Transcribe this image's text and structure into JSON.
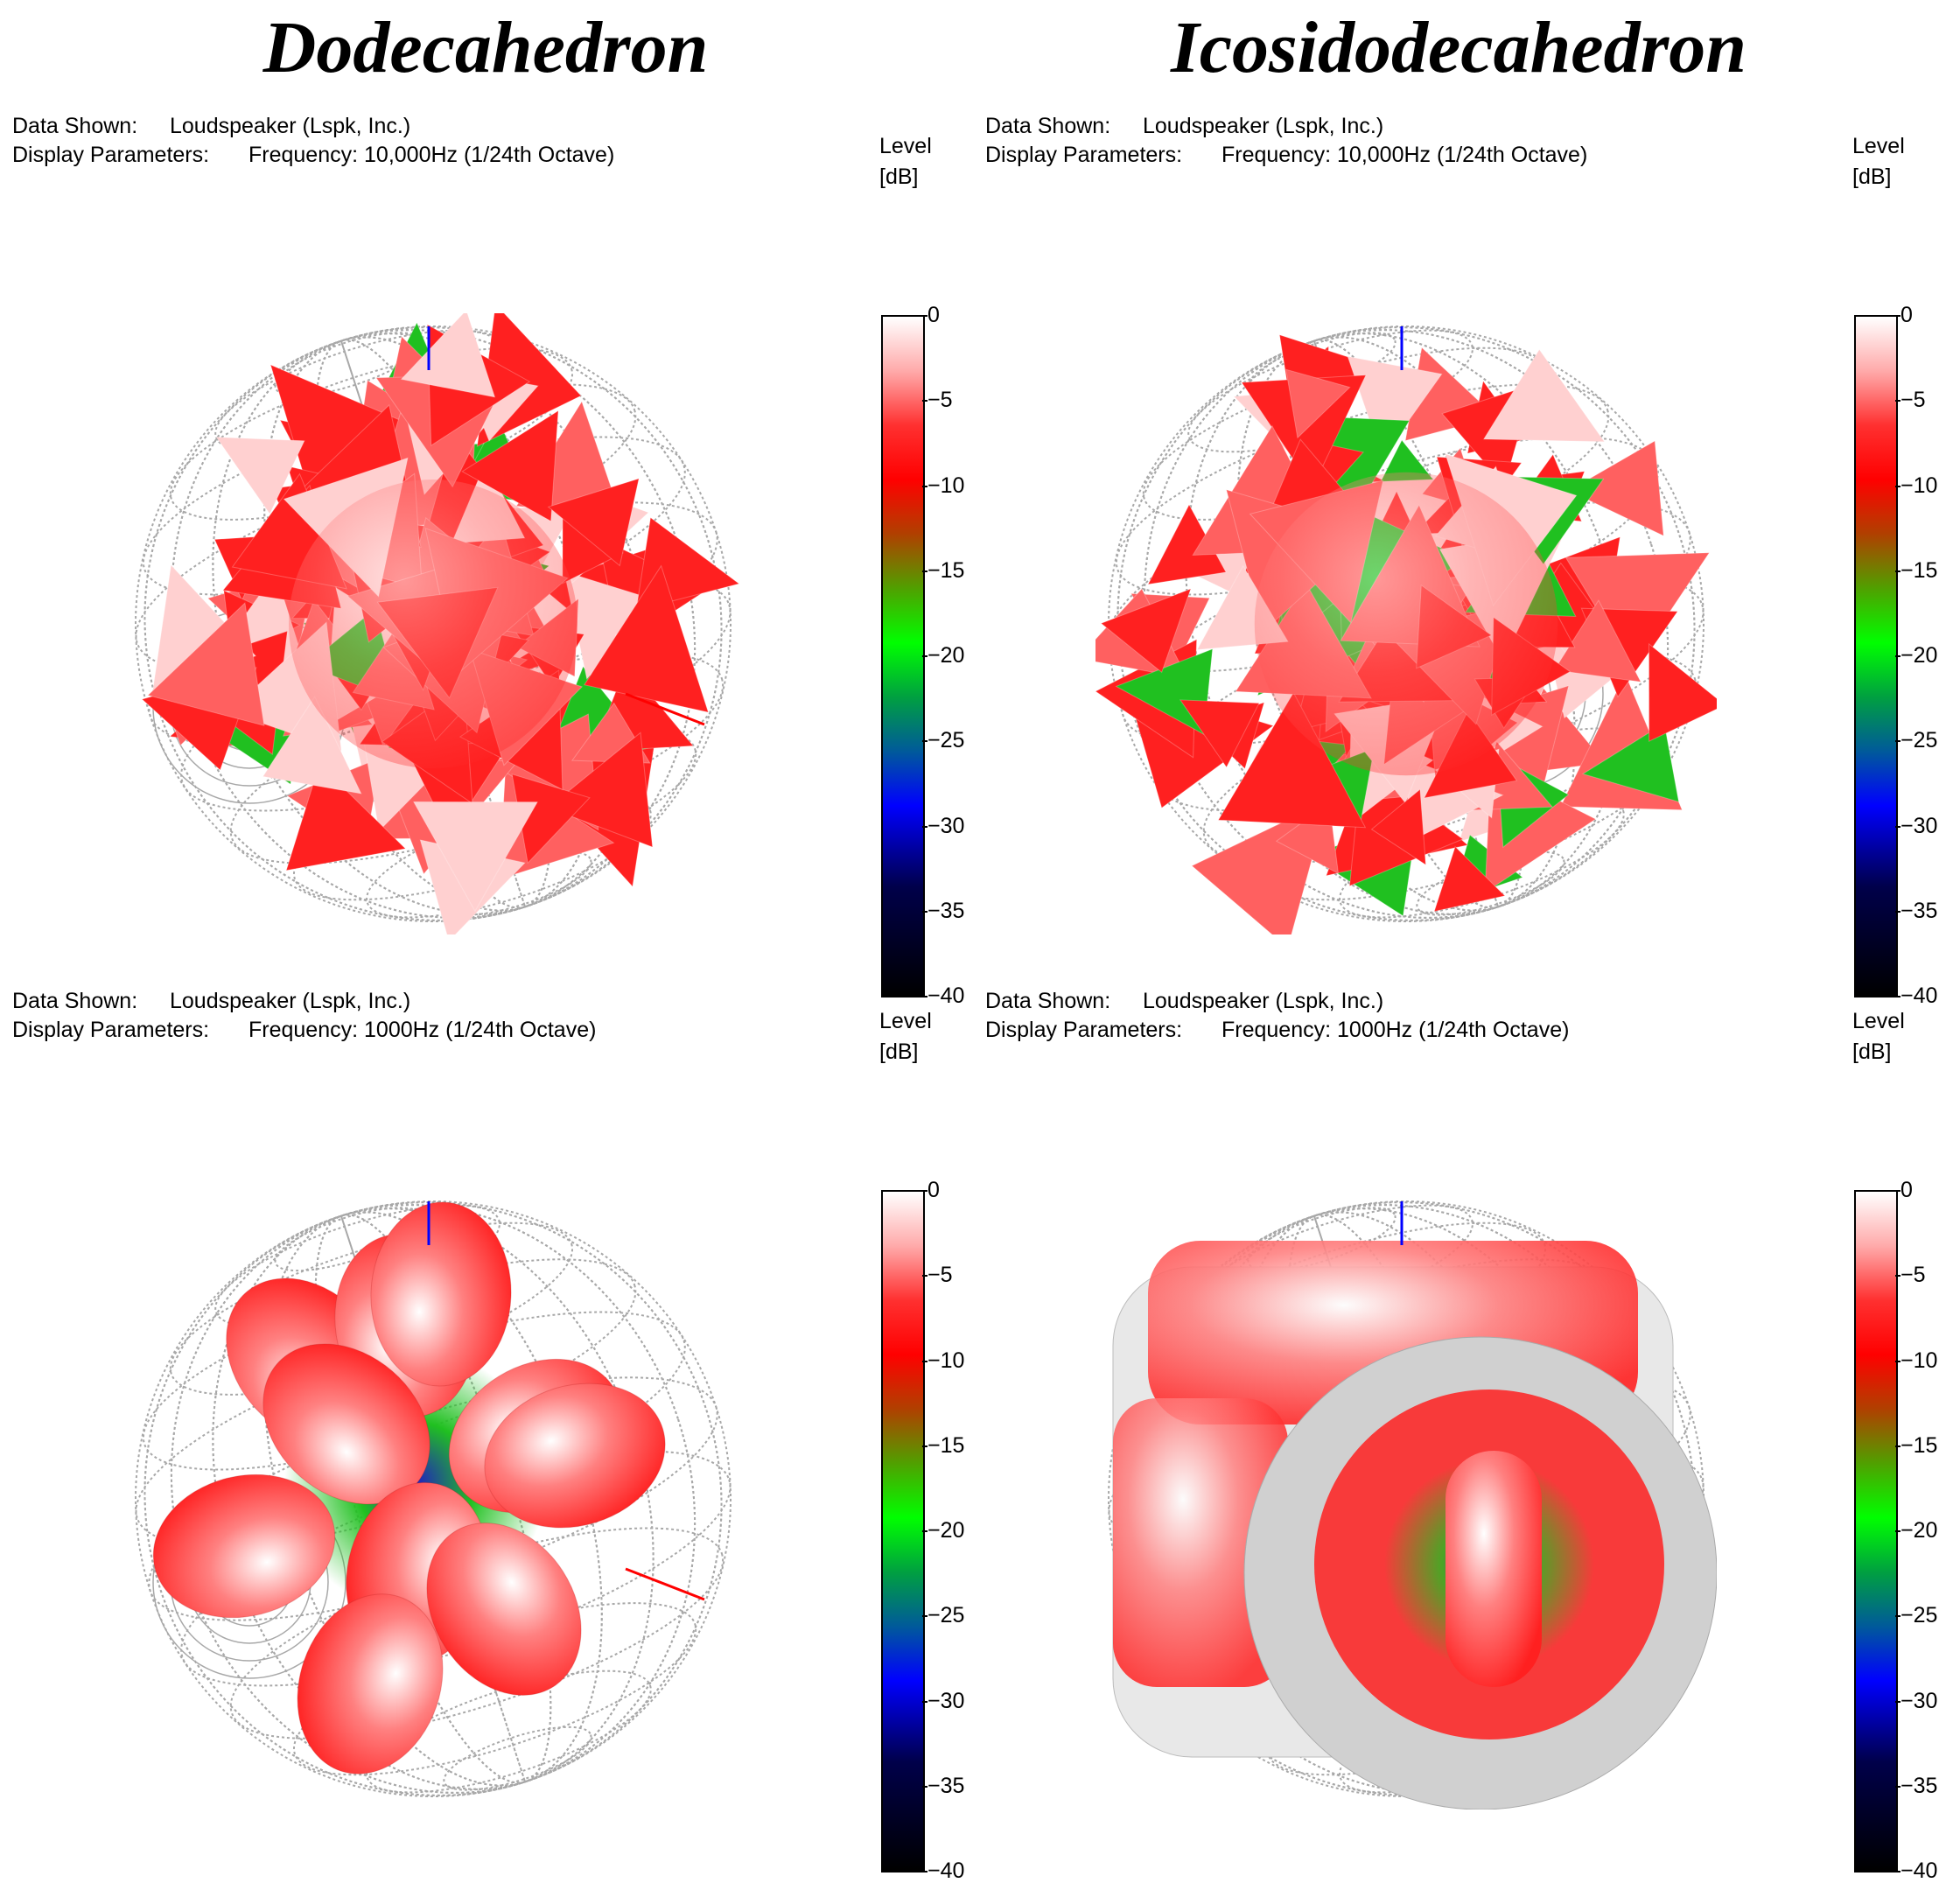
{
  "titles": {
    "left": "Dodecahedron",
    "right": "Icosidodecahedron"
  },
  "labels": {
    "data_shown": "Data Shown:",
    "display_parameters": "Display Parameters:",
    "level": "Level",
    "unit": "[dB]"
  },
  "colors": {
    "grid": "#a8a8a8",
    "balloon_red": "#ff2020",
    "balloon_white": "#ffffff",
    "balloon_green": "#20c020",
    "balloon_blue": "#2020c0",
    "axis_blue": "#0000ff",
    "axis_red": "#ff0000"
  },
  "chart_data": [
    {
      "type": "heatmap",
      "shape": "Dodecahedron",
      "data_shown": "Loudspeaker (Lspk, Inc.)",
      "display_parameters": "Frequency: 10,000Hz (1/24th Octave)",
      "colorbar": {
        "label": "Level",
        "unit": "[dB]",
        "range": [
          -40,
          0
        ],
        "ticks": [
          "0",
          "−5",
          "−10",
          "−15",
          "−20",
          "−25",
          "−30",
          "−35",
          "−40"
        ]
      }
    },
    {
      "type": "heatmap",
      "shape": "Icosidodecahedron",
      "data_shown": "Loudspeaker (Lspk, Inc.)",
      "display_parameters": "Frequency: 10,000Hz (1/24th Octave)",
      "colorbar": {
        "label": "Level",
        "unit": "[dB]",
        "range": [
          -40,
          0
        ],
        "ticks": [
          "0",
          "−5",
          "−10",
          "−15",
          "−20",
          "−25",
          "−30",
          "−35",
          "−40"
        ]
      }
    },
    {
      "type": "heatmap",
      "shape": "Dodecahedron",
      "data_shown": "Loudspeaker (Lspk, Inc.)",
      "display_parameters": "Frequency: 1000Hz (1/24th Octave)",
      "colorbar": {
        "label": "Level",
        "unit": "[dB]",
        "range": [
          -40,
          0
        ],
        "ticks": [
          "0",
          "−5",
          "−10",
          "−15",
          "−20",
          "−25",
          "−30",
          "−35",
          "−40"
        ]
      }
    },
    {
      "type": "heatmap",
      "shape": "Icosidodecahedron",
      "data_shown": "Loudspeaker (Lspk, Inc.)",
      "display_parameters": "Frequency: 1000Hz (1/24th Octave)",
      "colorbar": {
        "label": "Level",
        "unit": "[dB]",
        "range": [
          -40,
          0
        ],
        "ticks": [
          "0",
          "−5",
          "−10",
          "−15",
          "−20",
          "−25",
          "−30",
          "−35",
          "−40"
        ]
      }
    }
  ]
}
